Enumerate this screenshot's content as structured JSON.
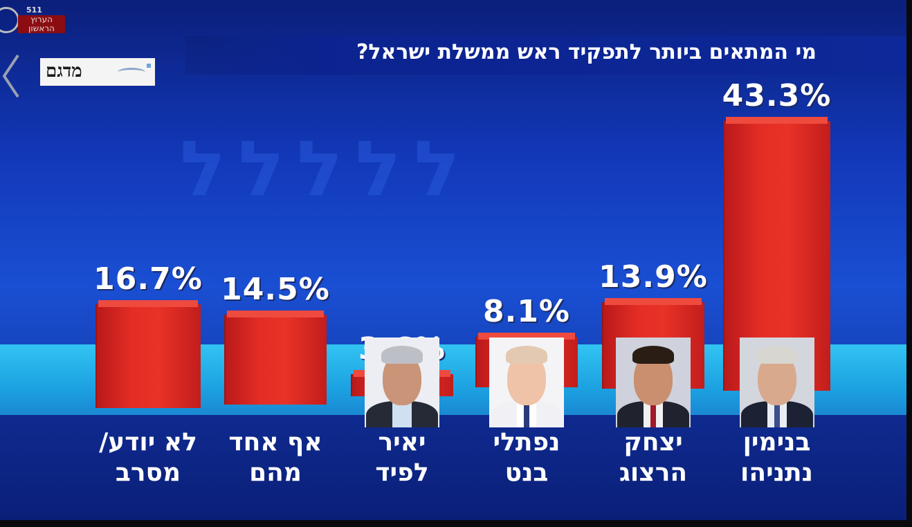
{
  "channel": {
    "number": "511",
    "name_line1": "הערוץ",
    "name_line2": "הראשון"
  },
  "pollster_logo": "מדגם",
  "chart_data": {
    "type": "bar",
    "title": "מי המתאים ביותר לתפקיד ראש ממשלת ישראל?",
    "categories": [
      "בנימין נתניהו",
      "יצחק הרצוג",
      "נפתלי בנט",
      "יאיר לפיד",
      "אף אחד מהם",
      "לא יודע/ מסרב"
    ],
    "category_lines": [
      [
        "בנימין",
        "נתניהו"
      ],
      [
        "יצחק",
        "הרצוג"
      ],
      [
        "נפתלי",
        "בנט"
      ],
      [
        "יאיר",
        "לפיד"
      ],
      [
        "אף אחד",
        "מהם"
      ],
      [
        "לא יודע/",
        "מסרב"
      ]
    ],
    "values": [
      43.3,
      13.9,
      8.1,
      3.6,
      14.5,
      16.7
    ],
    "value_labels": [
      "43.3%",
      "13.9%",
      "8.1%",
      "3.6%",
      "14.5%",
      "16.7%"
    ],
    "ylim": [
      0,
      50
    ],
    "grid": false,
    "bar_color": "#e42d25",
    "portraits": [
      "netanyahu",
      "herzog",
      "bennett",
      "lapid",
      null,
      null
    ]
  }
}
